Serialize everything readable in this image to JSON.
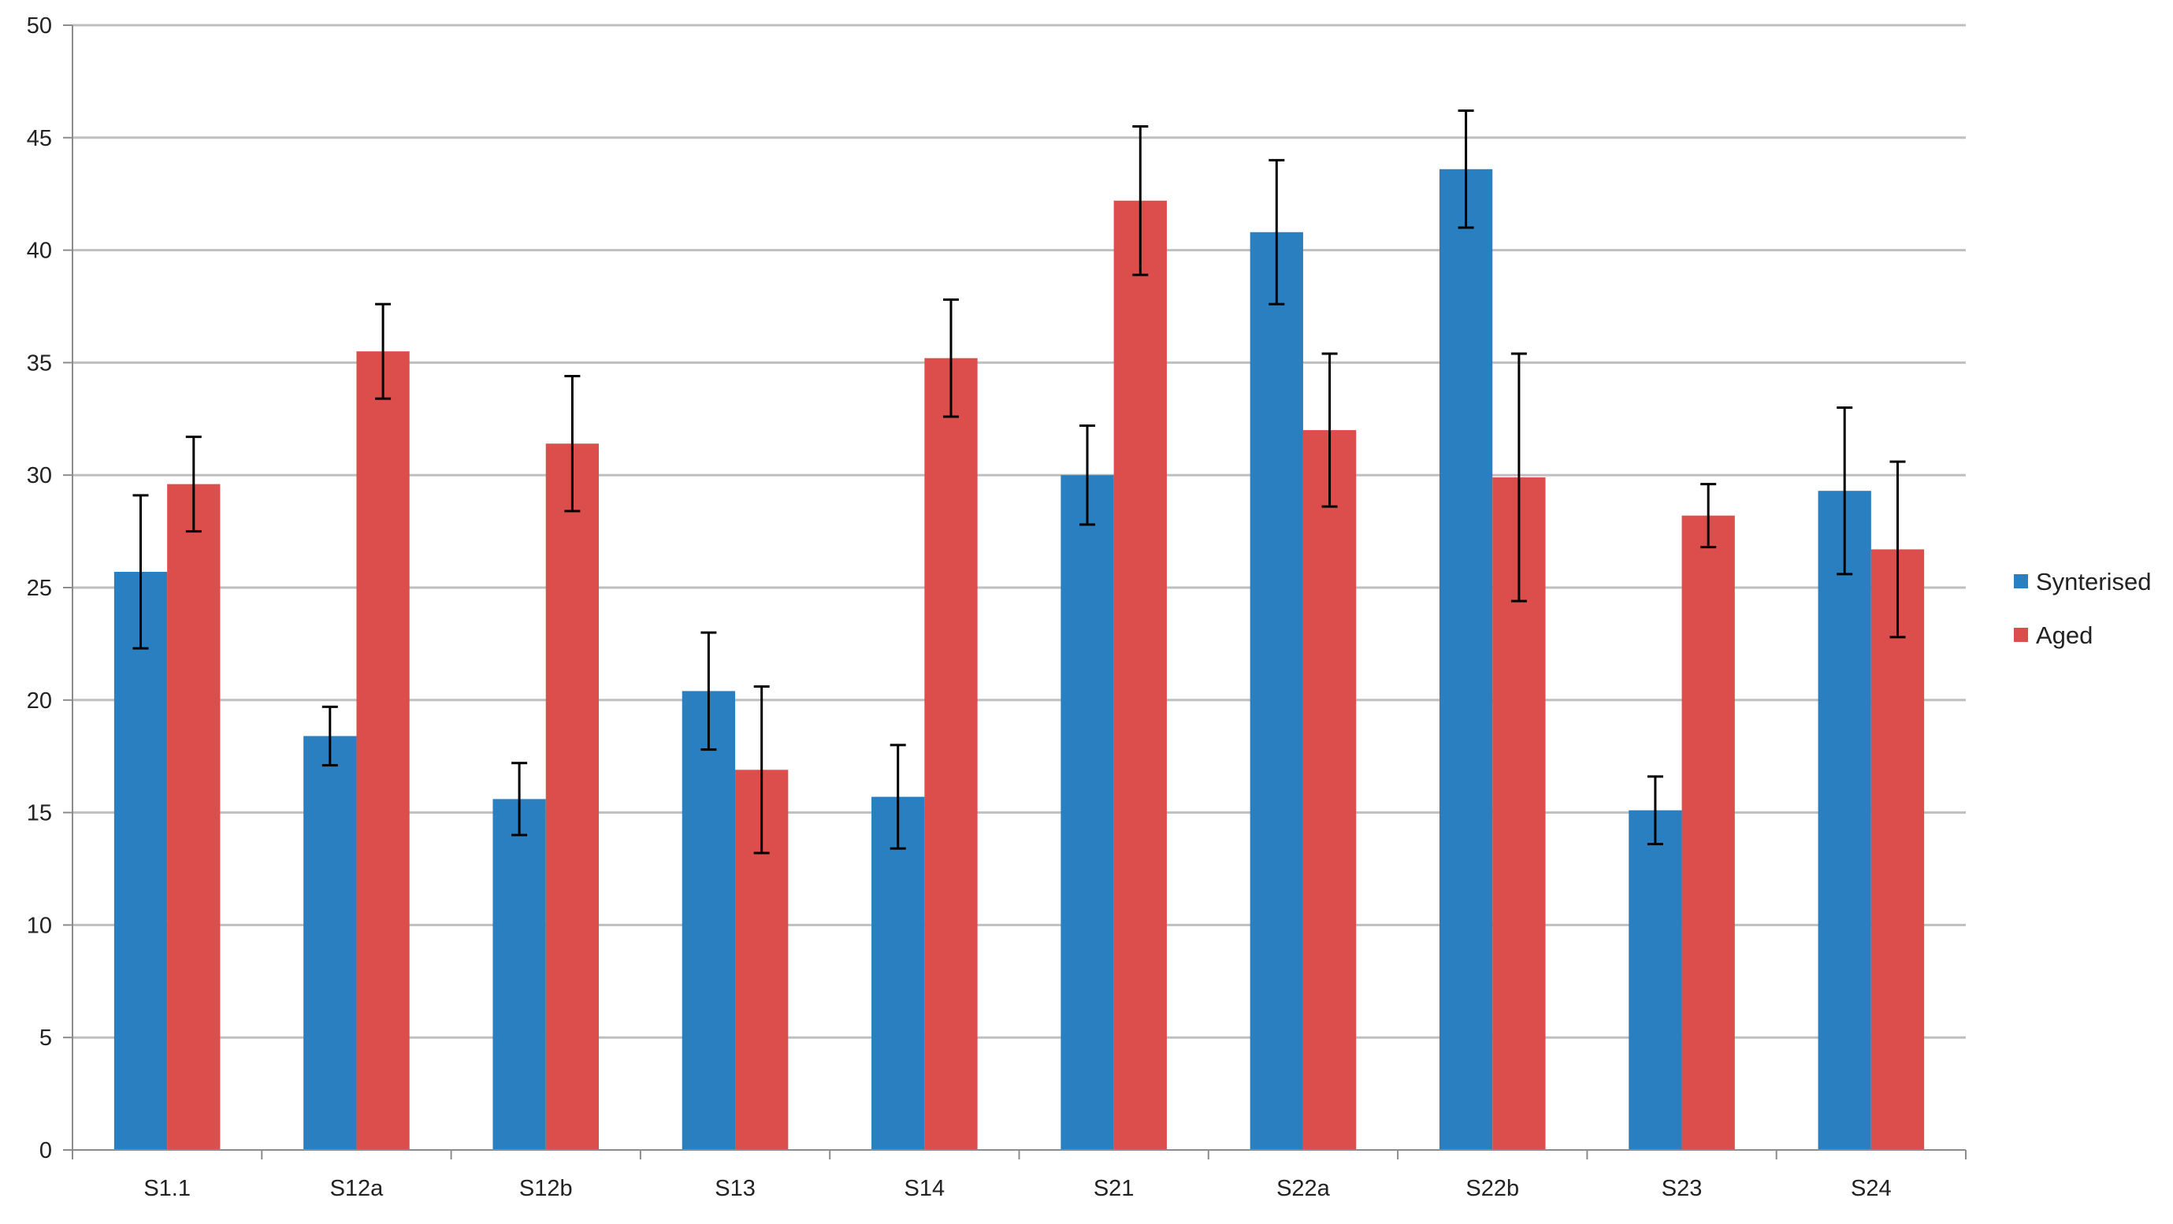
{
  "chart_data": {
    "type": "bar",
    "categories": [
      "S1.1",
      "S12a",
      "S12b",
      "S13",
      "S14",
      "S21",
      "S22a",
      "S22b",
      "S23",
      "S24"
    ],
    "series": [
      {
        "name": "Synterised",
        "color": "#2a7fc1",
        "values": [
          25.7,
          18.4,
          15.6,
          20.4,
          15.7,
          30.0,
          40.8,
          43.6,
          15.1,
          29.3
        ],
        "error": [
          3.4,
          1.3,
          1.6,
          2.6,
          2.3,
          2.2,
          3.2,
          2.6,
          1.5,
          3.7
        ]
      },
      {
        "name": "Aged",
        "color": "#dc4e4b",
        "values": [
          29.6,
          35.5,
          31.4,
          16.9,
          35.2,
          42.2,
          32.0,
          29.9,
          28.2,
          26.7
        ],
        "error": [
          2.1,
          2.1,
          3.0,
          3.7,
          2.6,
          3.3,
          3.4,
          5.5,
          1.4,
          3.9
        ]
      }
    ],
    "ylim": [
      0,
      50
    ],
    "yticks": [
      0,
      5,
      10,
      15,
      20,
      25,
      30,
      35,
      40,
      45,
      50
    ],
    "title": "",
    "xlabel": "",
    "ylabel": "",
    "grid": true,
    "legend_position": "right",
    "colors": {
      "gridline": "#bfbfbf",
      "axis": "#8c8c8c",
      "error_bar": "#000000",
      "text": "#222222"
    }
  }
}
